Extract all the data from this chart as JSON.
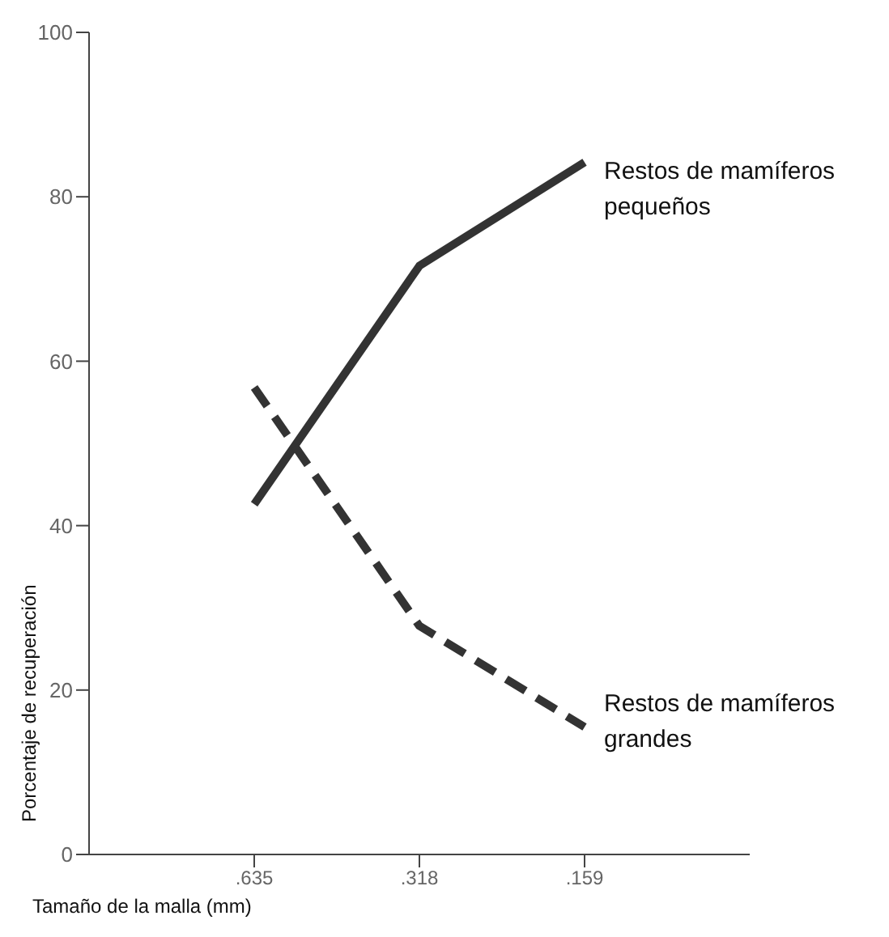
{
  "chart_data": {
    "type": "line",
    "xlabel": "Tamaño de la malla (mm)",
    "ylabel": "Porcentaje de recuperación",
    "categories": [
      ".635",
      ".318",
      ".159"
    ],
    "ylim": [
      0,
      100
    ],
    "yticks": [
      0,
      20,
      40,
      60,
      80,
      100
    ],
    "grid": false,
    "legend": false,
    "marker": "none",
    "series": [
      {
        "name": "Restos de mamíferos pequeños",
        "color": "#333333",
        "line_style": "solid",
        "values": [
          42.6,
          71.6,
          84.2
        ]
      },
      {
        "name": "Restos de mamíferos grandes",
        "color": "#333333",
        "line_style": "dashed",
        "values": [
          56.8,
          27.8,
          15.5
        ]
      }
    ]
  }
}
